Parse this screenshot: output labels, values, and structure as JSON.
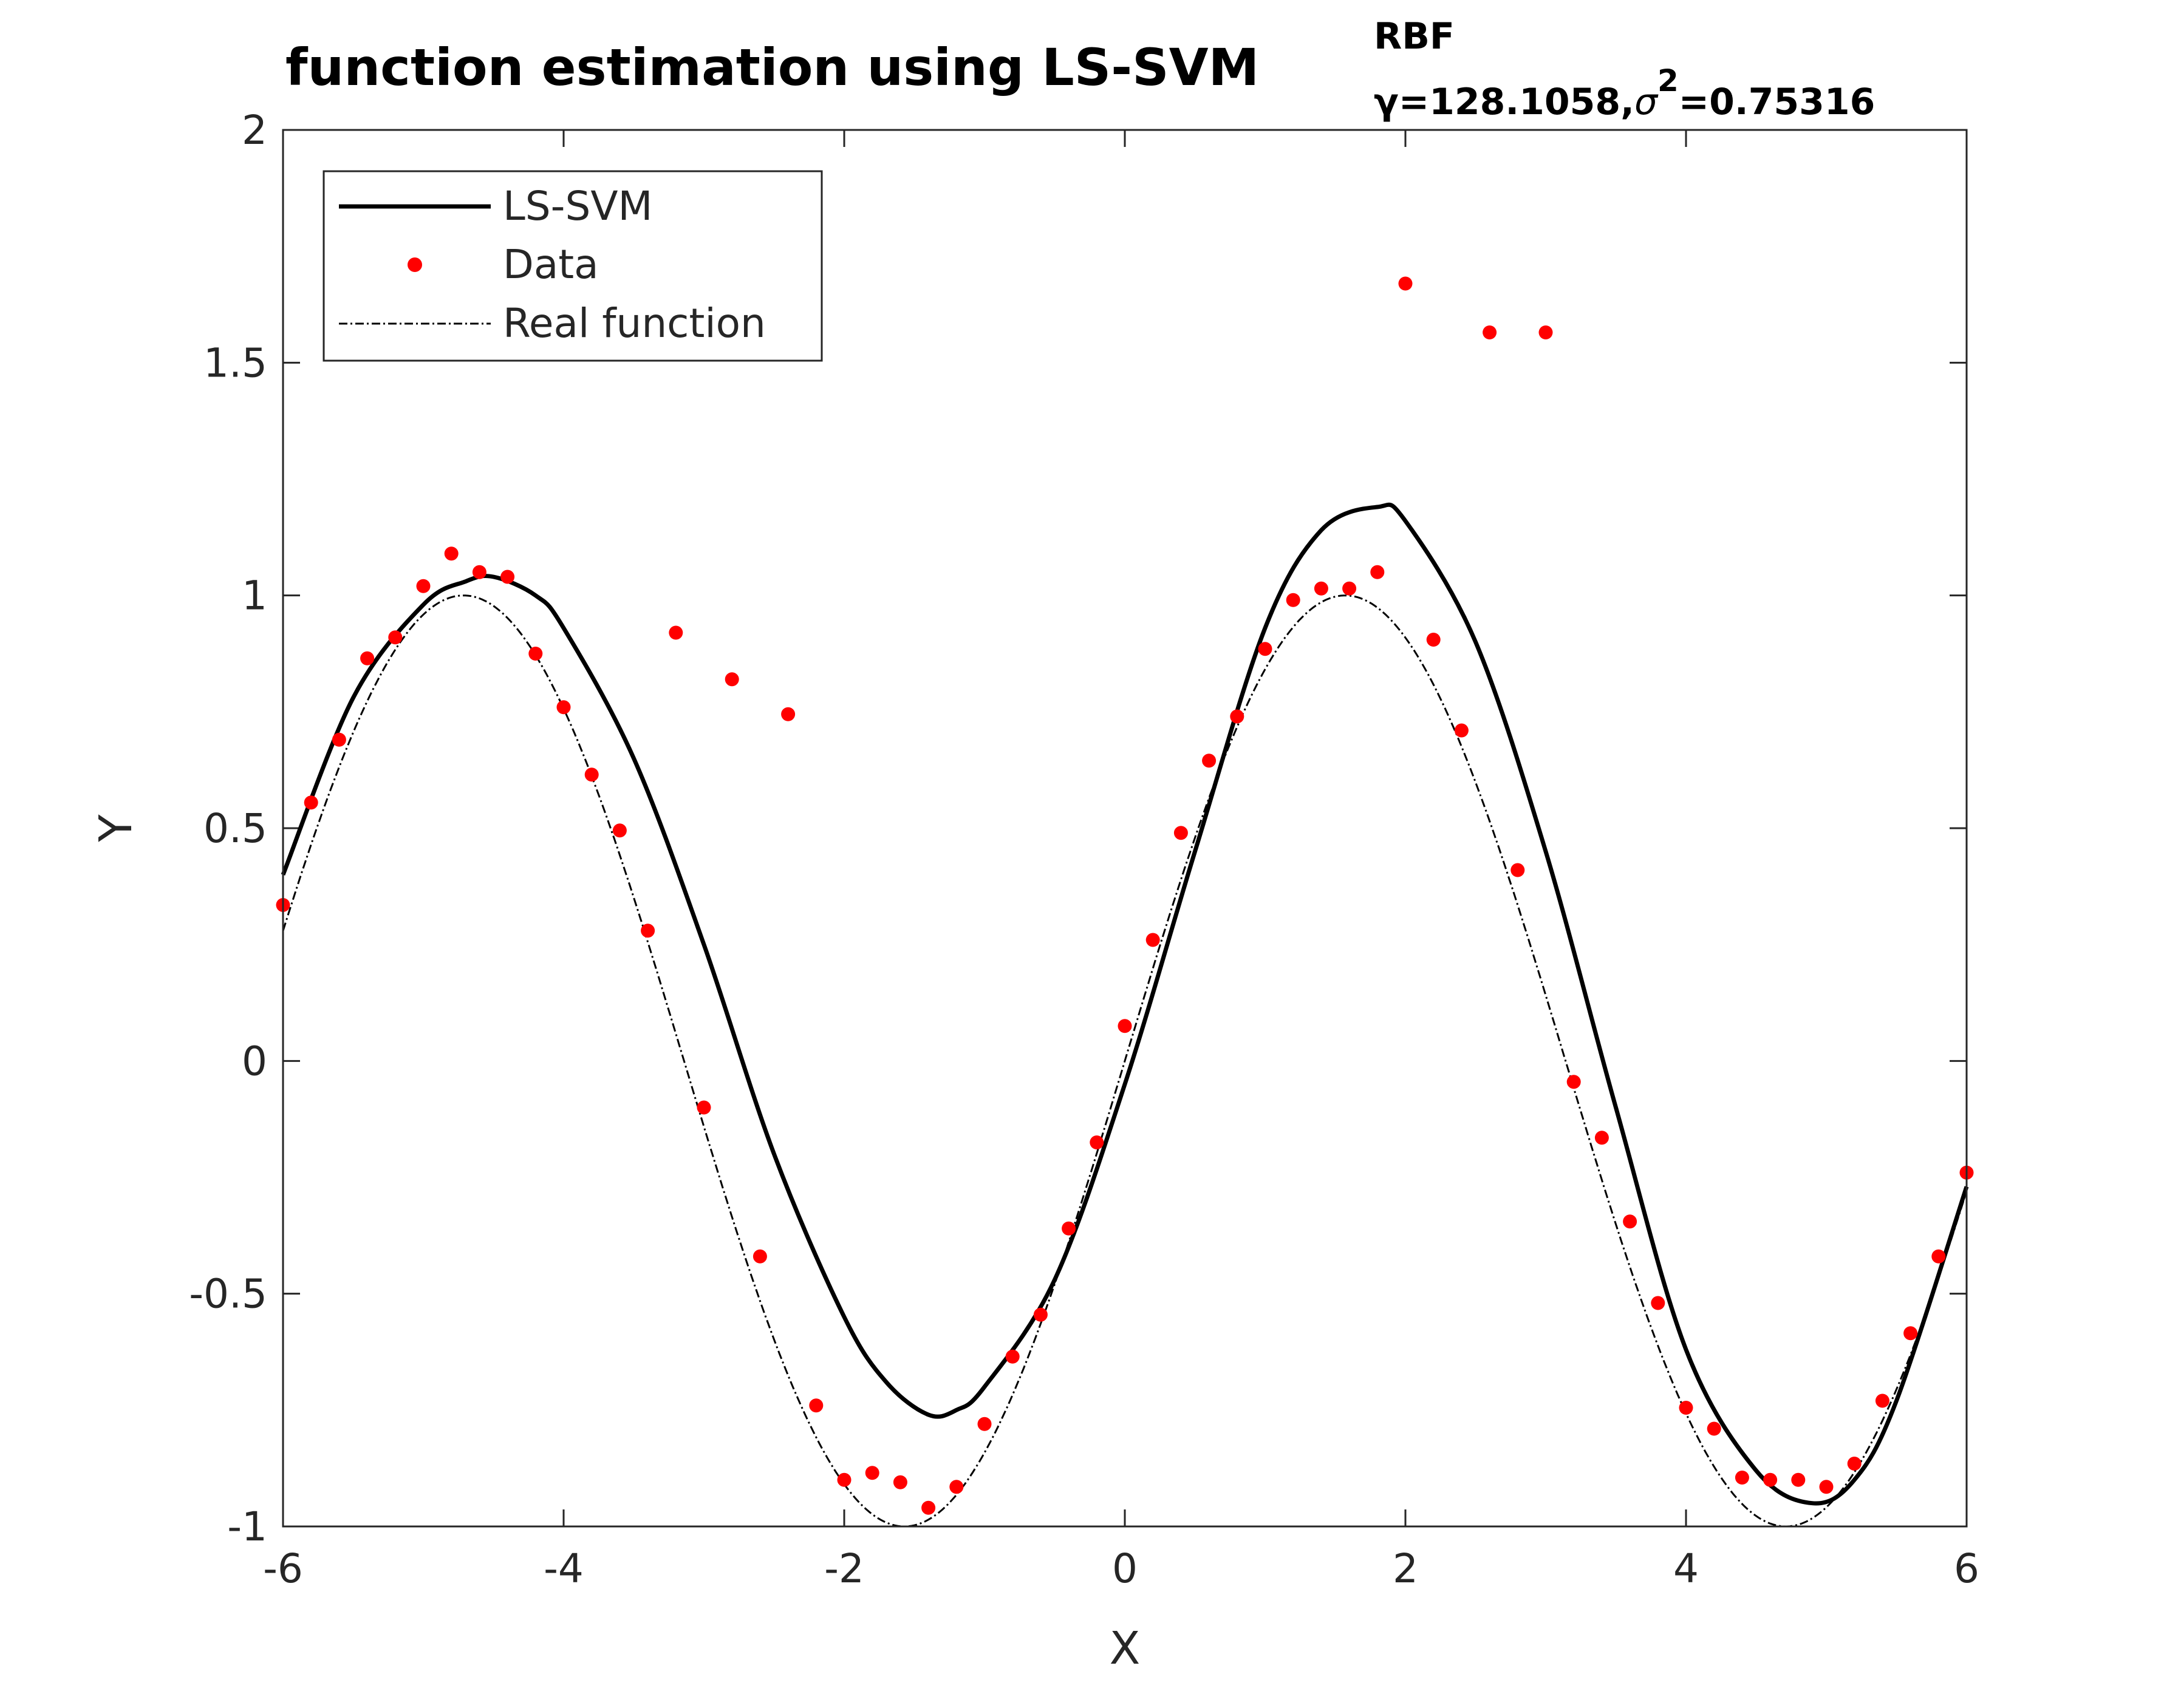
{
  "chart_data": {
    "type": "line",
    "title": {
      "main": "function estimation using  LS-SVM",
      "superscript": "RBF",
      "subscript_gamma": "γ=128.1058,",
      "subscript_sigma": "σ",
      "subscript_sigma_exp": "2",
      "subscript_value": "=0.75316"
    },
    "xlabel": "X",
    "ylabel": "Y",
    "xlim": [
      -6,
      6
    ],
    "ylim": [
      -1,
      2
    ],
    "xticks": [
      {
        "value": -6,
        "label": "-6"
      },
      {
        "value": -4,
        "label": "-4"
      },
      {
        "value": -2,
        "label": "-2"
      },
      {
        "value": 0,
        "label": "0"
      },
      {
        "value": 2,
        "label": "2"
      },
      {
        "value": 4,
        "label": "4"
      },
      {
        "value": 6,
        "label": "6"
      }
    ],
    "yticks": [
      {
        "value": -1,
        "label": "-1"
      },
      {
        "value": -0.5,
        "label": "-0.5"
      },
      {
        "value": 0,
        "label": "0"
      },
      {
        "value": 0.5,
        "label": "0.5"
      },
      {
        "value": 1,
        "label": "1"
      },
      {
        "value": 1.5,
        "label": "1.5"
      },
      {
        "value": 2,
        "label": "2"
      }
    ],
    "grid": false,
    "legend_position": "top-left",
    "series": [
      {
        "name": "LS-SVM",
        "style": "solid-thick",
        "color": "#000000",
        "x": [
          -6,
          -5.5,
          -5,
          -4.7,
          -4.5,
          -4.2,
          -4,
          -3.5,
          -3,
          -2.5,
          -2,
          -1.7,
          -1.4,
          -1.2,
          -1,
          -0.5,
          0,
          0.5,
          1,
          1.4,
          1.8,
          2,
          2.5,
          3,
          3.5,
          4,
          4.5,
          4.9,
          5.2,
          5.5,
          6
        ],
        "y": [
          0.4,
          0.78,
          0.98,
          1.03,
          1.04,
          1.0,
          0.93,
          0.65,
          0.25,
          -0.2,
          -0.55,
          -0.69,
          -0.76,
          -0.75,
          -0.7,
          -0.47,
          -0.05,
          0.45,
          0.93,
          1.14,
          1.19,
          1.16,
          0.9,
          0.45,
          -0.1,
          -0.62,
          -0.88,
          -0.95,
          -0.9,
          -0.73,
          -0.27
        ]
      },
      {
        "name": "Data",
        "style": "markers",
        "color": "#ff0000",
        "x": [
          -6,
          -5.8,
          -5.6,
          -5.4,
          -5.2,
          -5,
          -4.8,
          -4.6,
          -4.4,
          -4.2,
          -4,
          -3.8,
          -3.6,
          -3.4,
          -3.2,
          -3,
          -2.8,
          -2.6,
          -2.4,
          -2.2,
          -2,
          -1.8,
          -1.6,
          -1.4,
          -1.2,
          -1,
          -0.8,
          -0.6,
          -0.4,
          -0.2,
          0,
          0.2,
          0.4,
          0.6,
          0.8,
          1,
          1.2,
          1.4,
          1.6,
          1.8,
          2,
          2.2,
          2.4,
          2.6,
          2.8,
          3,
          3.2,
          3.4,
          3.6,
          3.8,
          4,
          4.2,
          4.4,
          4.6,
          4.8,
          5,
          5.2,
          5.4,
          5.6,
          5.8,
          6
        ],
        "y": [
          0.335,
          0.555,
          0.69,
          0.865,
          0.91,
          1.02,
          1.09,
          1.05,
          1.04,
          0.875,
          0.76,
          0.615,
          0.495,
          0.28,
          0.92,
          -0.1,
          0.82,
          -0.42,
          0.745,
          -0.74,
          -0.9,
          -0.885,
          -0.905,
          -0.96,
          -0.915,
          -0.78,
          -0.635,
          -0.545,
          -0.36,
          -0.175,
          0.075,
          0.26,
          0.49,
          0.645,
          0.74,
          0.885,
          0.99,
          1.015,
          1.015,
          1.05,
          1.67,
          0.905,
          0.71,
          1.565,
          0.41,
          1.565,
          -0.045,
          -0.165,
          -0.345,
          -0.52,
          -0.745,
          -0.79,
          -0.895,
          -0.9,
          -0.9,
          -0.915,
          -0.865,
          -0.73,
          -0.585,
          -0.42,
          -0.24
        ]
      },
      {
        "name": "Real function",
        "style": "dash-dot-thin",
        "color": "#000000",
        "function": "sin(x)",
        "x": [
          -6,
          -5.5,
          -5,
          -4.71,
          -4.5,
          -4,
          -3.5,
          -3,
          -2.5,
          -2,
          -1.57,
          -1,
          -0.5,
          0,
          0.5,
          1,
          1.57,
          2,
          2.5,
          3,
          3.5,
          4,
          4.5,
          4.71,
          5,
          5.5,
          6
        ],
        "y": [
          0.279,
          0.706,
          0.959,
          1.0,
          0.978,
          0.757,
          0.351,
          -0.141,
          -0.598,
          -0.909,
          -1.0,
          -0.841,
          -0.479,
          0.0,
          0.479,
          0.841,
          1.0,
          0.909,
          0.598,
          0.141,
          -0.351,
          -0.757,
          -0.978,
          -1.0,
          -0.959,
          -0.706,
          -0.279
        ]
      }
    ]
  }
}
